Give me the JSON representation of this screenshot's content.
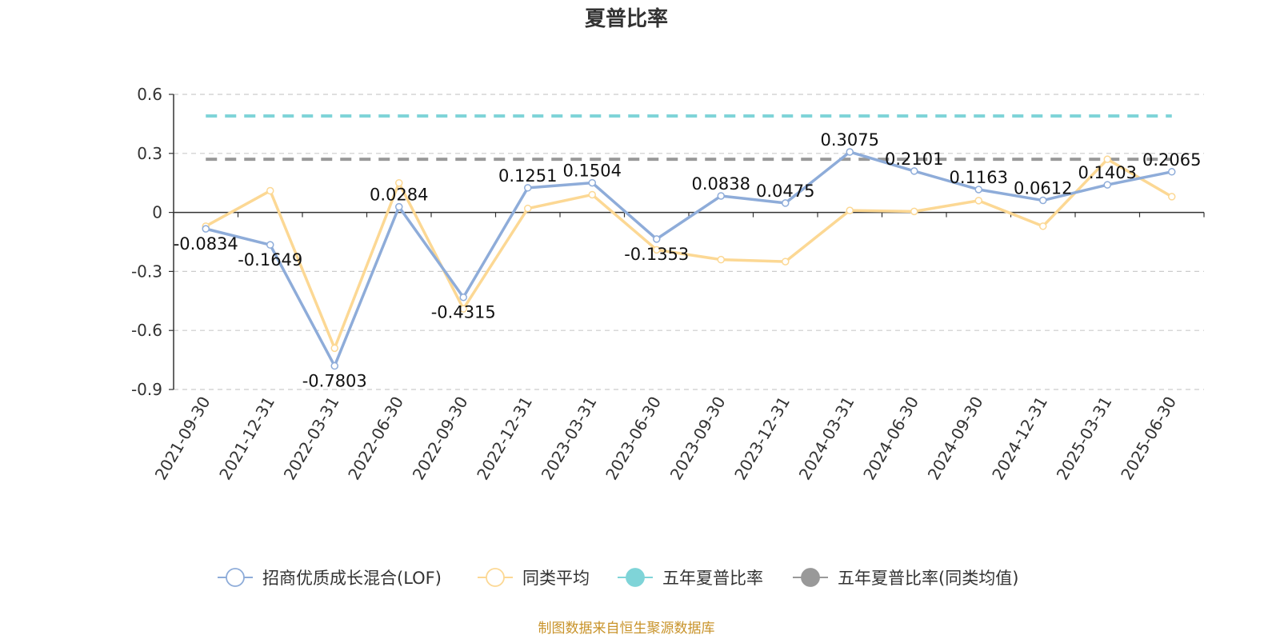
{
  "chart_data": {
    "type": "line",
    "title": "夏普比率",
    "categories": [
      "2021-09-30",
      "2021-12-31",
      "2022-03-31",
      "2022-06-30",
      "2022-09-30",
      "2022-12-31",
      "2023-03-31",
      "2023-06-30",
      "2023-09-30",
      "2023-12-31",
      "2024-03-31",
      "2024-06-30",
      "2024-09-30",
      "2024-12-31",
      "2025-03-31",
      "2025-06-30"
    ],
    "ylim": [
      -0.9,
      0.6
    ],
    "yticks": [
      0.6,
      0.3,
      0,
      -0.3,
      -0.6,
      -0.9
    ],
    "ytick_labels": [
      "0.6",
      "0.3",
      "0",
      "-0.3",
      "-0.6",
      "-0.9"
    ],
    "grid": true,
    "legend_position": "bottom-center",
    "series": [
      {
        "name": "招商优质成长混合(LOF)",
        "color": "#8eacd9",
        "values": [
          -0.0834,
          -0.1649,
          -0.7803,
          0.0284,
          -0.4315,
          0.1251,
          0.1504,
          -0.1353,
          0.0838,
          0.0475,
          0.3075,
          0.2101,
          0.1163,
          0.0612,
          0.1403,
          0.2065
        ],
        "labels": [
          "-0.0834",
          "-0.1649",
          "-0.7803",
          "0.0284",
          "-0.4315",
          "0.1251",
          "0.1504",
          "-0.1353",
          "0.0838",
          "0.0475",
          "0.3075",
          "0.2101",
          "0.1163",
          "0.0612",
          "0.1403",
          "0.2065"
        ]
      },
      {
        "name": "同类平均",
        "color": "#fcd894",
        "values": [
          -0.07,
          0.11,
          -0.69,
          0.15,
          -0.49,
          0.02,
          0.09,
          -0.19,
          -0.24,
          -0.25,
          0.01,
          0.005,
          0.06,
          -0.07,
          0.27,
          0.08
        ]
      },
      {
        "name": "五年夏普比率",
        "color": "#7fd4d8",
        "value": 0.49
      },
      {
        "name": "五年夏普比率(同类均值)",
        "color": "#999999",
        "value": 0.27
      }
    ],
    "source": "制图数据来自恒生聚源数据库"
  }
}
